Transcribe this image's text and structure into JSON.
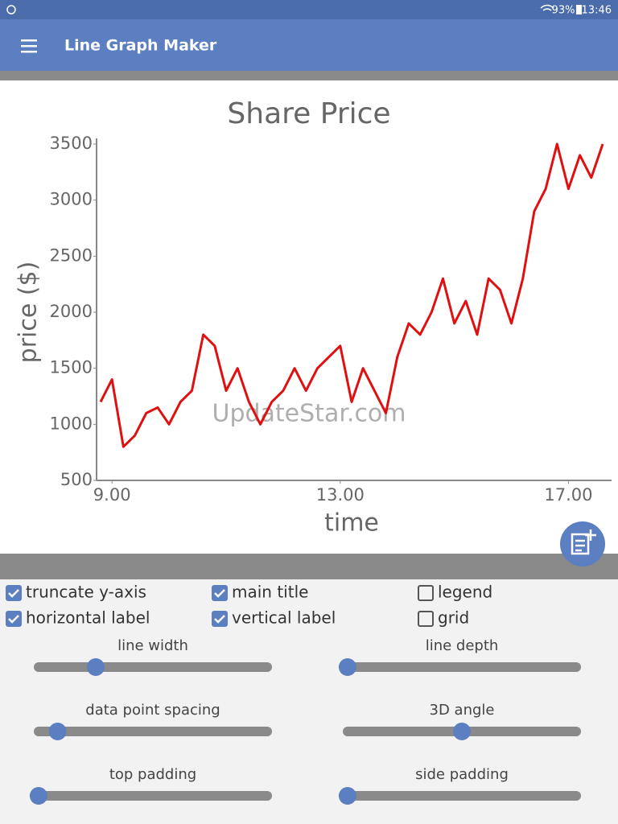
{
  "status_bar": {
    "battery": "93%",
    "time": "13:46"
  },
  "app_bar": {
    "title": "Line Graph Maker"
  },
  "chart_data": {
    "type": "line",
    "title": "Share Price",
    "xlabel": "time",
    "ylabel": "price ($)",
    "watermark": "UpdateStar.com",
    "color": "#e01010",
    "x": [
      8.8,
      9.0,
      9.2,
      9.4,
      9.6,
      9.8,
      10.0,
      10.2,
      10.4,
      10.6,
      10.8,
      11.0,
      11.2,
      11.4,
      11.6,
      11.8,
      12.0,
      12.2,
      12.4,
      12.6,
      12.8,
      13.0,
      13.2,
      13.4,
      13.6,
      13.8,
      14.0,
      14.2,
      14.4,
      14.6,
      14.8,
      15.0,
      15.2,
      15.4,
      15.6,
      15.8,
      16.0,
      16.2,
      16.4,
      16.6,
      16.8,
      17.0,
      17.2,
      17.4,
      17.6
    ],
    "values": [
      1200,
      1400,
      800,
      900,
      1100,
      1150,
      1000,
      1200,
      1300,
      1800,
      1700,
      1300,
      1500,
      1200,
      1000,
      1200,
      1300,
      1500,
      1300,
      1500,
      1600,
      1700,
      1200,
      1500,
      1300,
      1100,
      1600,
      1900,
      1800,
      2000,
      2300,
      1900,
      2100,
      1800,
      2300,
      2200,
      1900,
      2300,
      2900,
      3100,
      3500,
      3100,
      3400,
      3200,
      3500
    ],
    "xlim": [
      8.8,
      17.6
    ],
    "ylim": [
      500,
      3500
    ],
    "xticks": [
      {
        "value": 9,
        "label": "9.00"
      },
      {
        "value": 13,
        "label": "13.00"
      },
      {
        "value": 17,
        "label": "17.00"
      }
    ],
    "yticks": [
      500,
      1000,
      1500,
      2000,
      2500,
      3000,
      3500
    ],
    "grid": false
  },
  "options": [
    {
      "label": "truncate y-axis",
      "checked": true
    },
    {
      "label": "main title",
      "checked": true
    },
    {
      "label": "legend",
      "checked": false
    },
    {
      "label": "horizontal label",
      "checked": true
    },
    {
      "label": "vertical label",
      "checked": true
    },
    {
      "label": "grid",
      "checked": false
    }
  ],
  "sliders": [
    {
      "label": "line width",
      "position": 26
    },
    {
      "label": "line depth",
      "position": 2
    },
    {
      "label": "data point spacing",
      "position": 10
    },
    {
      "label": "3D angle",
      "position": 50
    },
    {
      "label": "top padding",
      "position": 2
    },
    {
      "label": "side padding",
      "position": 2
    }
  ]
}
